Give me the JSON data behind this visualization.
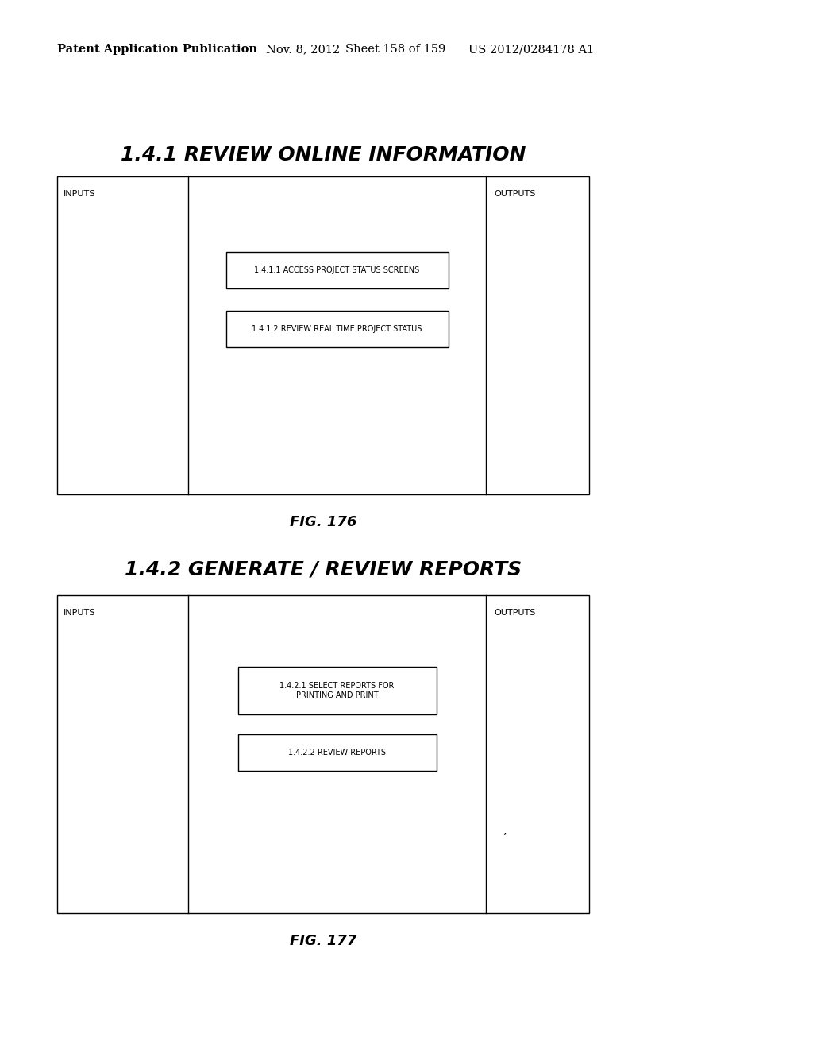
{
  "bg_color": "#ffffff",
  "header_text": "Patent Application Publication",
  "header_date": "Nov. 8, 2012",
  "header_sheet": "Sheet 158 of 159",
  "header_patent": "US 2012/0284178 A1",
  "fig1_title": "1.4.1 REVIEW ONLINE INFORMATION",
  "fig1_label": "FIG. 176",
  "fig1_inputs_label": "INPUTS",
  "fig1_outputs_label": "OUTPUTS",
  "fig1_boxes": [
    "1.4.1.1 ACCESS PROJECT STATUS SCREENS",
    "1.4.1.2 REVIEW REAL TIME PROJECT STATUS"
  ],
  "fig2_title": "1.4.2 GENERATE / REVIEW REPORTS",
  "fig2_label": "FIG. 177",
  "fig2_inputs_label": "INPUTS",
  "fig2_outputs_label": "OUTPUTS",
  "fig2_boxes": [
    "1.4.2.1 SELECT REPORTS FOR\nPRINTING AND PRINT",
    "1.4.2.2 REVIEW REPORTS"
  ],
  "fig2_mark": "’"
}
